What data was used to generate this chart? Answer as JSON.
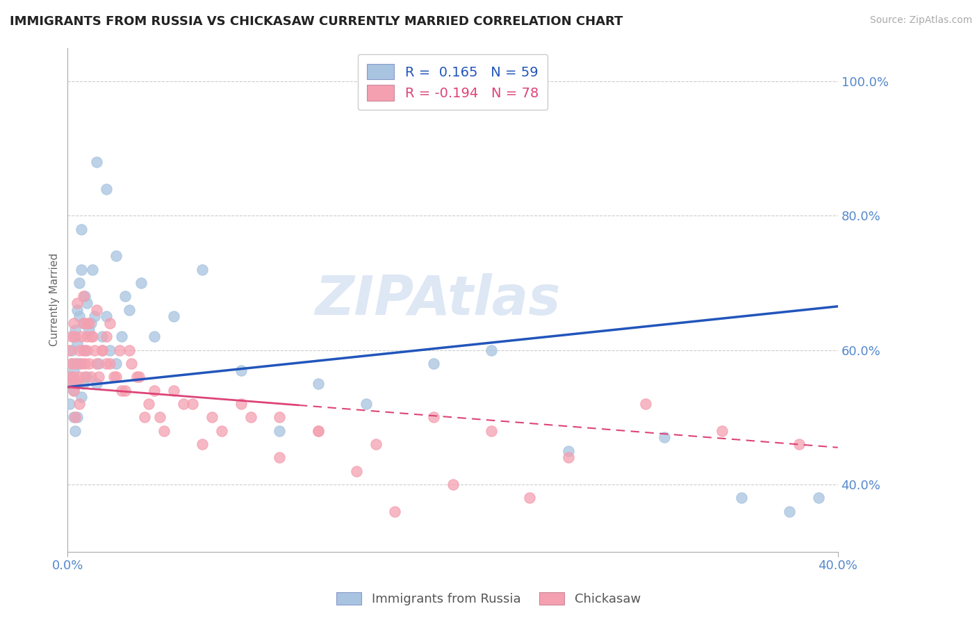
{
  "title": "IMMIGRANTS FROM RUSSIA VS CHICKASAW CURRENTLY MARRIED CORRELATION CHART",
  "source_text": "Source: ZipAtlas.com",
  "ylabel": "Currently Married",
  "xlim": [
    0.0,
    0.4
  ],
  "ylim": [
    0.3,
    1.05
  ],
  "yticks": [
    0.4,
    0.6,
    0.8,
    1.0
  ],
  "ytick_labels": [
    "40.0%",
    "60.0%",
    "80.0%",
    "100.0%"
  ],
  "xticks": [
    0.0,
    0.4
  ],
  "xtick_labels": [
    "0.0%",
    "40.0%"
  ],
  "legend_r1": "R =  0.165",
  "legend_n1": "N = 59",
  "legend_r2": "R = -0.194",
  "legend_n2": "N = 78",
  "series1_label": "Immigrants from Russia",
  "series2_label": "Chickasaw",
  "dot_color1": "#a8c4e0",
  "dot_color2": "#f4a0b0",
  "line_color1": "#2255bb",
  "line_color2": "#dd4477",
  "background_color": "#ffffff",
  "watermark": "ZIPAtlas",
  "title_fontsize": 13,
  "axis_label_color": "#5588cc",
  "grid_color": "#cccccc",
  "trend1_x0": 0.0,
  "trend1_y0": 0.545,
  "trend1_x1": 0.4,
  "trend1_y1": 0.665,
  "trend2_x0": 0.0,
  "trend2_y0": 0.545,
  "trend2_x1": 0.4,
  "trend2_y1": 0.455,
  "trend2_solid_end": 0.12,
  "series1_x": [
    0.001,
    0.001,
    0.002,
    0.002,
    0.002,
    0.003,
    0.003,
    0.003,
    0.003,
    0.004,
    0.004,
    0.004,
    0.005,
    0.005,
    0.005,
    0.005,
    0.006,
    0.006,
    0.006,
    0.007,
    0.007,
    0.007,
    0.008,
    0.008,
    0.009,
    0.009,
    0.01,
    0.01,
    0.011,
    0.012,
    0.013,
    0.014,
    0.015,
    0.016,
    0.018,
    0.02,
    0.022,
    0.025,
    0.028,
    0.032,
    0.038,
    0.045,
    0.055,
    0.07,
    0.09,
    0.11,
    0.13,
    0.155,
    0.19,
    0.22,
    0.26,
    0.31,
    0.35,
    0.375,
    0.39,
    0.015,
    0.02,
    0.025,
    0.03
  ],
  "series1_y": [
    0.55,
    0.52,
    0.58,
    0.56,
    0.6,
    0.5,
    0.54,
    0.62,
    0.57,
    0.48,
    0.55,
    0.63,
    0.61,
    0.5,
    0.66,
    0.58,
    0.7,
    0.65,
    0.58,
    0.72,
    0.53,
    0.78,
    0.55,
    0.64,
    0.6,
    0.68,
    0.67,
    0.56,
    0.63,
    0.64,
    0.72,
    0.65,
    0.55,
    0.58,
    0.62,
    0.65,
    0.6,
    0.58,
    0.62,
    0.66,
    0.7,
    0.62,
    0.65,
    0.72,
    0.57,
    0.48,
    0.55,
    0.52,
    0.58,
    0.6,
    0.45,
    0.47,
    0.38,
    0.36,
    0.38,
    0.88,
    0.84,
    0.74,
    0.68
  ],
  "series2_x": [
    0.001,
    0.001,
    0.002,
    0.002,
    0.002,
    0.003,
    0.003,
    0.003,
    0.004,
    0.004,
    0.004,
    0.005,
    0.005,
    0.006,
    0.006,
    0.006,
    0.007,
    0.007,
    0.008,
    0.008,
    0.009,
    0.009,
    0.01,
    0.01,
    0.011,
    0.011,
    0.012,
    0.013,
    0.014,
    0.015,
    0.016,
    0.018,
    0.02,
    0.022,
    0.024,
    0.027,
    0.03,
    0.033,
    0.037,
    0.042,
    0.048,
    0.055,
    0.065,
    0.075,
    0.09,
    0.11,
    0.13,
    0.16,
    0.19,
    0.22,
    0.26,
    0.3,
    0.34,
    0.38,
    0.008,
    0.01,
    0.012,
    0.015,
    0.018,
    0.02,
    0.022,
    0.025,
    0.028,
    0.032,
    0.036,
    0.04,
    0.045,
    0.05,
    0.06,
    0.07,
    0.08,
    0.095,
    0.11,
    0.13,
    0.15,
    0.17,
    0.2,
    0.24
  ],
  "series2_y": [
    0.56,
    0.6,
    0.55,
    0.62,
    0.58,
    0.54,
    0.56,
    0.64,
    0.5,
    0.58,
    0.62,
    0.55,
    0.67,
    0.52,
    0.6,
    0.56,
    0.62,
    0.58,
    0.64,
    0.6,
    0.58,
    0.56,
    0.62,
    0.6,
    0.58,
    0.64,
    0.56,
    0.62,
    0.6,
    0.58,
    0.56,
    0.6,
    0.62,
    0.58,
    0.56,
    0.6,
    0.54,
    0.58,
    0.56,
    0.52,
    0.5,
    0.54,
    0.52,
    0.5,
    0.52,
    0.5,
    0.48,
    0.46,
    0.5,
    0.48,
    0.44,
    0.52,
    0.48,
    0.46,
    0.68,
    0.64,
    0.62,
    0.66,
    0.6,
    0.58,
    0.64,
    0.56,
    0.54,
    0.6,
    0.56,
    0.5,
    0.54,
    0.48,
    0.52,
    0.46,
    0.48,
    0.5,
    0.44,
    0.48,
    0.42,
    0.36,
    0.4,
    0.38
  ]
}
